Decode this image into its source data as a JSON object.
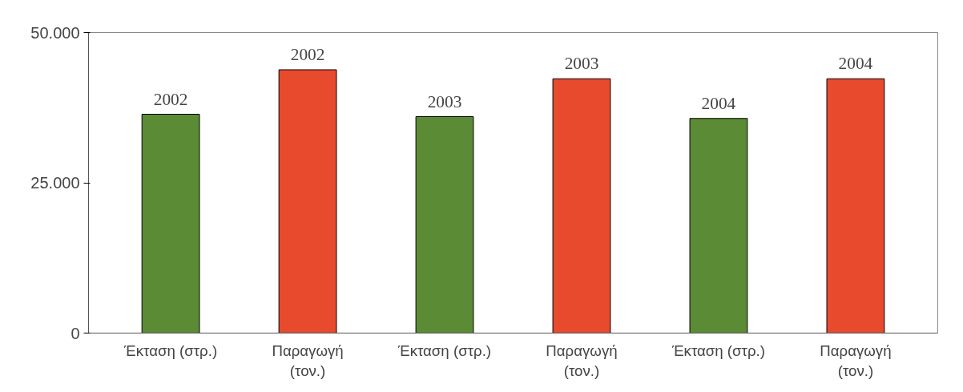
{
  "chart_data": {
    "type": "bar",
    "categories": [
      "Έκταση (στρ.)",
      "Παραγωγή (τον.)",
      "Έκταση (στρ.)",
      "Παραγωγή (τον.)",
      "Έκταση (στρ.)",
      "Παραγωγή (τον.)"
    ],
    "values": [
      36400,
      43800,
      36000,
      42300,
      35700,
      42300
    ],
    "colors": [
      "#5b8c35",
      "#e84a2e",
      "#5b8c35",
      "#e84a2e",
      "#5b8c35",
      "#e84a2e"
    ],
    "annotations": [
      "2002",
      "2002",
      "2003",
      "2003",
      "2004",
      "2004"
    ],
    "ylim": [
      0,
      50000
    ],
    "yticks": [
      {
        "value": 0,
        "label": "0"
      },
      {
        "value": 25000,
        "label": "25.000"
      },
      {
        "value": 50000,
        "label": "50.000"
      }
    ],
    "grid": false
  }
}
